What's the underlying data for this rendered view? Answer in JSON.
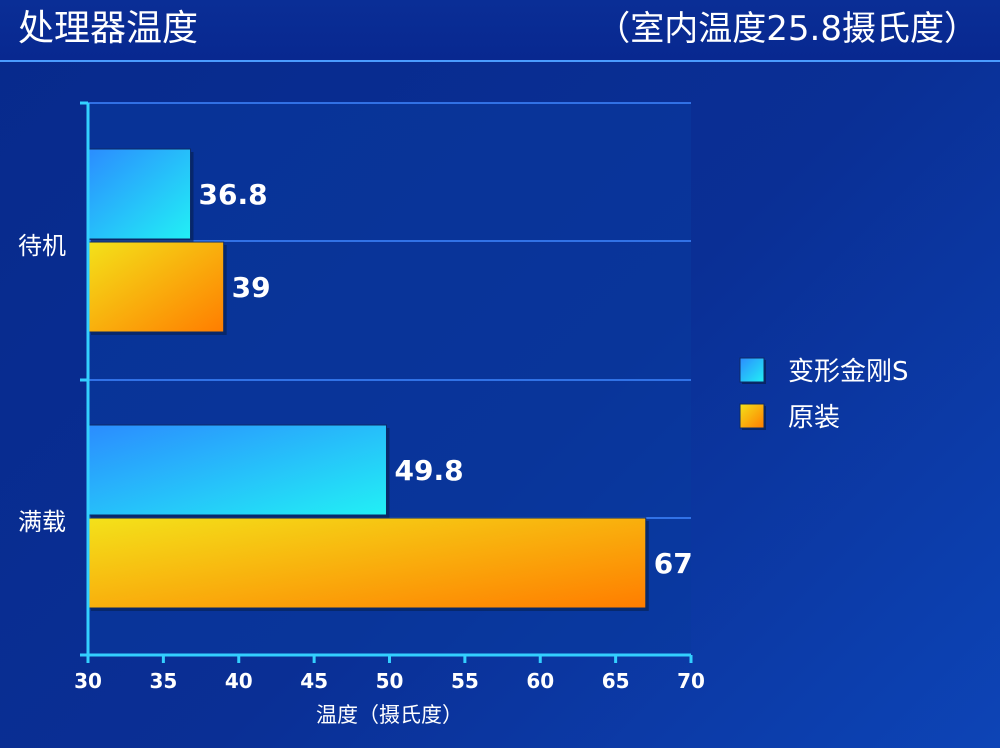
{
  "header": {
    "title": "处理器温度",
    "subtitle": "（室内温度25.8摄氏度）"
  },
  "chart_data": {
    "type": "bar",
    "orientation": "horizontal",
    "categories": [
      "待机",
      "满载"
    ],
    "series": [
      {
        "name": "变形金刚S",
        "values": [
          36.8,
          49.8
        ],
        "color": "#29c4f5"
      },
      {
        "name": "原装",
        "values": [
          39,
          67
        ],
        "color": "#f5b300"
      }
    ],
    "data_labels": [
      [
        "36.8",
        "49.8"
      ],
      [
        "39",
        "67"
      ]
    ],
    "xlabel": "温度（摄氏度）",
    "ylabel": "",
    "xlim": [
      30,
      70
    ],
    "xticks": [
      30,
      35,
      40,
      45,
      50,
      55,
      60,
      65,
      70
    ],
    "grid": true,
    "legend_position": "right"
  }
}
